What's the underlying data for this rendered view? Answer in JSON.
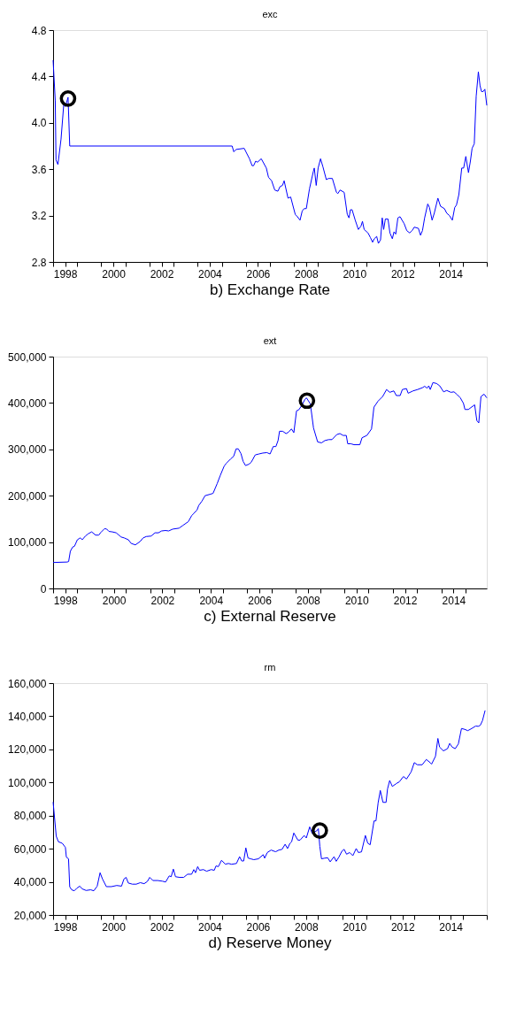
{
  "chart_data": [
    {
      "type": "line",
      "title": "exc",
      "annotations": [
        "b) Exchange Rate"
      ],
      "xlim": [
        1998,
        2016
      ],
      "xticks": [
        {
          "value": 1998,
          "label": null
        },
        {
          "value": 1998.5,
          "label": "1998"
        },
        {
          "value": 1999,
          "label": null
        },
        {
          "value": 2000,
          "label": null
        },
        {
          "value": 2000.5,
          "label": "2000"
        },
        {
          "value": 2001,
          "label": null
        },
        {
          "value": 2002,
          "label": null
        },
        {
          "value": 2002.5,
          "label": "2002"
        },
        {
          "value": 2003,
          "label": null
        },
        {
          "value": 2004,
          "label": null
        },
        {
          "value": 2004.5,
          "label": "2004"
        },
        {
          "value": 2005,
          "label": null
        },
        {
          "value": 2006,
          "label": null
        },
        {
          "value": 2006.5,
          "label": "2006"
        },
        {
          "value": 2007,
          "label": null
        },
        {
          "value": 2008,
          "label": null
        },
        {
          "value": 2008.5,
          "label": "2008"
        },
        {
          "value": 2009,
          "label": null
        },
        {
          "value": 2010,
          "label": null
        },
        {
          "value": 2010.5,
          "label": "2010"
        },
        {
          "value": 2011,
          "label": null
        },
        {
          "value": 2012,
          "label": null
        },
        {
          "value": 2012.5,
          "label": "2012"
        },
        {
          "value": 2013,
          "label": null
        },
        {
          "value": 2014,
          "label": null
        },
        {
          "value": 2014.5,
          "label": "2014"
        },
        {
          "value": 2015,
          "label": null
        },
        {
          "value": 2016,
          "label": null
        }
      ],
      "ylim": [
        2.8,
        4.8
      ],
      "yticks": [
        {
          "value": 2.8,
          "label": "2.8"
        },
        {
          "value": 3.2,
          "label": "3.2"
        },
        {
          "value": 3.6,
          "label": "3.6"
        },
        {
          "value": 4,
          "label": "4.0"
        },
        {
          "value": 4.4,
          "label": "4.4"
        },
        {
          "value": 4.8,
          "label": "4.8"
        }
      ],
      "series": [
        {
          "color": "#0000ff",
          "x": [
            1998.0,
            1998.09,
            1998.12,
            1998.2,
            1998.33,
            1998.45,
            1998.51,
            1998.62,
            1998.69,
            2005.43,
            2005.5,
            2005.59,
            2005.93,
            2006.15,
            2006.26,
            2006.32,
            2006.41,
            2006.48,
            2006.64,
            2006.85,
            2006.94,
            2007.07,
            2007.2,
            2007.33,
            2007.42,
            2007.52,
            2007.59,
            2007.75,
            2007.86,
            2008.05,
            2008.14,
            2008.25,
            2008.34,
            2008.42,
            2008.51,
            2008.64,
            2008.8,
            2008.84,
            2008.92,
            2009.0,
            2009.1,
            2009.2,
            2009.34,
            2009.43,
            2009.59,
            2009.76,
            2009.82,
            2009.91,
            2010.08,
            2010.21,
            2010.28,
            2010.34,
            2010.41,
            2010.54,
            2010.67,
            2010.78,
            2010.84,
            2010.91,
            2011.07,
            2011.17,
            2011.26,
            2011.33,
            2011.43,
            2011.5,
            2011.59,
            2011.66,
            2011.72,
            2011.79,
            2011.9,
            2011.98,
            2012.08,
            2012.15,
            2012.22,
            2012.31,
            2012.4,
            2012.57,
            2012.68,
            2012.8,
            2012.9,
            2012.99,
            2013.16,
            2013.25,
            2013.33,
            2013.42,
            2013.55,
            2013.62,
            2013.73,
            2013.82,
            2013.97,
            2014.08,
            2014.24,
            2014.34,
            2014.45,
            2014.57,
            2014.67,
            2014.74,
            2014.84,
            2014.96,
            2015.04,
            2015.13,
            2015.24,
            2015.32,
            2015.39,
            2015.48,
            2015.56,
            2015.65,
            2015.72,
            2015.78,
            2015.85,
            2015.92,
            2016.0
          ],
          "values": [
            4.54,
            4.19,
            3.68,
            3.64,
            3.86,
            4.18,
            4.14,
            4.22,
            3.8,
            3.8,
            3.75,
            3.77,
            3.78,
            3.69,
            3.63,
            3.63,
            3.67,
            3.66,
            3.69,
            3.61,
            3.53,
            3.5,
            3.42,
            3.41,
            3.45,
            3.46,
            3.5,
            3.35,
            3.36,
            3.21,
            3.19,
            3.16,
            3.24,
            3.26,
            3.26,
            3.43,
            3.58,
            3.61,
            3.46,
            3.61,
            3.69,
            3.62,
            3.51,
            3.52,
            3.52,
            3.4,
            3.39,
            3.42,
            3.4,
            3.21,
            3.18,
            3.25,
            3.25,
            3.16,
            3.08,
            3.11,
            3.15,
            3.08,
            3.05,
            3.01,
            2.97,
            3.0,
            3.02,
            2.96,
            2.99,
            3.18,
            3.08,
            3.17,
            3.17,
            3.05,
            3.0,
            3.06,
            3.04,
            3.18,
            3.19,
            3.13,
            3.07,
            3.05,
            3.07,
            3.1,
            3.09,
            3.03,
            3.07,
            3.18,
            3.3,
            3.27,
            3.16,
            3.22,
            3.35,
            3.28,
            3.26,
            3.22,
            3.2,
            3.16,
            3.27,
            3.29,
            3.38,
            3.61,
            3.61,
            3.71,
            3.57,
            3.67,
            3.78,
            3.82,
            4.23,
            4.44,
            4.32,
            4.27,
            4.27,
            4.29,
            4.15
          ]
        },
        {
          "type": "scatter",
          "color": "#000000",
          "marker": "circle",
          "x": [
            1998.62
          ],
          "values": [
            4.21
          ]
        }
      ]
    },
    {
      "type": "line",
      "title": "ext",
      "annotations": [
        "c) External Reserve"
      ],
      "xlim": [
        1998,
        2015.87
      ],
      "xticks": [
        {
          "value": 1998,
          "label": null
        },
        {
          "value": 1998.5,
          "label": "1998"
        },
        {
          "value": 1999,
          "label": null
        },
        {
          "value": 2000,
          "label": null
        },
        {
          "value": 2000.5,
          "label": "2000"
        },
        {
          "value": 2001,
          "label": null
        },
        {
          "value": 2002,
          "label": null
        },
        {
          "value": 2002.5,
          "label": "2002"
        },
        {
          "value": 2003,
          "label": null
        },
        {
          "value": 2004,
          "label": null
        },
        {
          "value": 2004.5,
          "label": "2004"
        },
        {
          "value": 2005,
          "label": null
        },
        {
          "value": 2006,
          "label": null
        },
        {
          "value": 2006.5,
          "label": "2006"
        },
        {
          "value": 2007,
          "label": null
        },
        {
          "value": 2008,
          "label": null
        },
        {
          "value": 2008.5,
          "label": "2008"
        },
        {
          "value": 2009,
          "label": null
        },
        {
          "value": 2010,
          "label": null
        },
        {
          "value": 2010.5,
          "label": "2010"
        },
        {
          "value": 2011,
          "label": null
        },
        {
          "value": 2012,
          "label": null
        },
        {
          "value": 2012.5,
          "label": "2012"
        },
        {
          "value": 2013,
          "label": null
        },
        {
          "value": 2014,
          "label": null
        },
        {
          "value": 2014.5,
          "label": "2014"
        },
        {
          "value": 2015,
          "label": null
        }
      ],
      "ylim": [
        0,
        500000
      ],
      "yticks": [
        {
          "value": 0,
          "label": "0"
        },
        {
          "value": 100000,
          "label": "100,000"
        },
        {
          "value": 200000,
          "label": "200,000"
        },
        {
          "value": 300000,
          "label": "300,000"
        },
        {
          "value": 400000,
          "label": "400,000"
        },
        {
          "value": 500000,
          "label": "500,000"
        }
      ],
      "series": [
        {
          "color": "#0000ff",
          "x": [
            1998.0,
            1998.58,
            1998.64,
            1998.71,
            1998.8,
            1998.88,
            1999.0,
            1999.12,
            1999.2,
            1999.33,
            1999.45,
            1999.59,
            1999.75,
            1999.88,
            1999.97,
            2000.12,
            2000.21,
            2000.3,
            2000.44,
            2000.6,
            2000.8,
            2000.93,
            2001.1,
            2001.22,
            2001.39,
            2001.58,
            2001.71,
            2001.84,
            2002.04,
            2002.2,
            2002.34,
            2002.47,
            2002.63,
            2002.76,
            2002.93,
            2003.19,
            2003.35,
            2003.57,
            2003.71,
            2003.8,
            2003.93,
            2004.0,
            2004.13,
            2004.26,
            2004.46,
            2004.59,
            2004.76,
            2004.89,
            2005.05,
            2005.14,
            2005.31,
            2005.44,
            2005.54,
            2005.63,
            2005.74,
            2005.83,
            2005.93,
            2006.07,
            2006.16,
            2006.33,
            2006.48,
            2006.64,
            2006.81,
            2006.94,
            2007.07,
            2007.18,
            2007.27,
            2007.33,
            2007.46,
            2007.6,
            2007.7,
            2007.82,
            2007.92,
            2008.03,
            2008.12,
            2008.25,
            2008.38,
            2008.44,
            2008.6,
            2008.73,
            2008.9,
            2009.06,
            2009.2,
            2009.36,
            2009.49,
            2009.69,
            2009.82,
            2009.95,
            2010.08,
            2010.14,
            2010.27,
            2010.4,
            2010.64,
            2010.73,
            2010.93,
            2011.12,
            2011.22,
            2011.39,
            2011.58,
            2011.74,
            2011.87,
            2012.04,
            2012.14,
            2012.3,
            2012.39,
            2012.56,
            2012.63,
            2012.83,
            2013.02,
            2013.22,
            2013.31,
            2013.41,
            2013.48,
            2013.54,
            2013.65,
            2013.8,
            2013.93,
            2014.09,
            2014.22,
            2014.39,
            2014.52,
            2014.65,
            2014.78,
            2014.91,
            2014.97,
            2015.11,
            2015.37,
            2015.46,
            2015.54,
            2015.63,
            2015.76,
            2015.87
          ],
          "values": [
            56000,
            57000,
            58000,
            80000,
            89000,
            91000,
            105000,
            109000,
            105000,
            113000,
            118000,
            122000,
            115000,
            115000,
            121000,
            129000,
            128000,
            123000,
            122000,
            120000,
            111000,
            109000,
            105000,
            97000,
            94000,
            101000,
            109000,
            112000,
            113000,
            120000,
            120000,
            124000,
            125000,
            124000,
            128000,
            130000,
            136000,
            144000,
            157000,
            162000,
            169000,
            179000,
            188000,
            200000,
            203000,
            205000,
            226000,
            244000,
            264000,
            270000,
            279000,
            285000,
            301000,
            301000,
            291000,
            274000,
            265000,
            268000,
            272000,
            288000,
            290000,
            292000,
            293000,
            290000,
            306000,
            306000,
            319000,
            339000,
            339000,
            334000,
            337000,
            344000,
            336000,
            383000,
            385000,
            395000,
            408000,
            411000,
            398000,
            346000,
            316000,
            314000,
            319000,
            321000,
            321000,
            332000,
            334000,
            330000,
            330000,
            312000,
            312000,
            310000,
            310000,
            325000,
            330000,
            344000,
            391000,
            404000,
            414000,
            429000,
            423000,
            426000,
            416000,
            416000,
            429000,
            431000,
            421000,
            426000,
            429000,
            433000,
            436000,
            432000,
            437000,
            429000,
            444000,
            442000,
            437000,
            424000,
            427000,
            423000,
            424000,
            418000,
            411000,
            399000,
            386000,
            386000,
            396000,
            362000,
            357000,
            414000,
            419000,
            411000
          ]
        },
        {
          "type": "scatter",
          "color": "#000000",
          "marker": "circle",
          "x": [
            2008.46
          ],
          "values": [
            405000
          ]
        }
      ]
    },
    {
      "type": "line",
      "title": "rm",
      "annotations": [
        "d) Reserve Money"
      ],
      "xlim": [
        1998,
        2016
      ],
      "xticks": [
        {
          "value": 1998,
          "label": null
        },
        {
          "value": 1998.5,
          "label": "1998"
        },
        {
          "value": 1999,
          "label": null
        },
        {
          "value": 2000,
          "label": null
        },
        {
          "value": 2000.5,
          "label": "2000"
        },
        {
          "value": 2001,
          "label": null
        },
        {
          "value": 2002,
          "label": null
        },
        {
          "value": 2002.5,
          "label": "2002"
        },
        {
          "value": 2003,
          "label": null
        },
        {
          "value": 2004,
          "label": null
        },
        {
          "value": 2004.5,
          "label": "2004"
        },
        {
          "value": 2005,
          "label": null
        },
        {
          "value": 2006,
          "label": null
        },
        {
          "value": 2006.5,
          "label": "2006"
        },
        {
          "value": 2007,
          "label": null
        },
        {
          "value": 2008,
          "label": null
        },
        {
          "value": 2008.5,
          "label": "2008"
        },
        {
          "value": 2009,
          "label": null
        },
        {
          "value": 2010,
          "label": null
        },
        {
          "value": 2010.5,
          "label": "2010"
        },
        {
          "value": 2011,
          "label": null
        },
        {
          "value": 2012,
          "label": null
        },
        {
          "value": 2012.5,
          "label": "2012"
        },
        {
          "value": 2013,
          "label": null
        },
        {
          "value": 2014,
          "label": null
        },
        {
          "value": 2014.5,
          "label": "2014"
        },
        {
          "value": 2015,
          "label": null
        },
        {
          "value": 2016,
          "label": null
        }
      ],
      "ylim": [
        20000,
        160000
      ],
      "yticks": [
        {
          "value": 20000,
          "label": "20,000"
        },
        {
          "value": 40000,
          "label": "40,000"
        },
        {
          "value": 60000,
          "label": "60,000"
        },
        {
          "value": 80000,
          "label": "80,000"
        },
        {
          "value": 100000,
          "label": "100,000"
        },
        {
          "value": 120000,
          "label": "120,000"
        },
        {
          "value": 140000,
          "label": "140,000"
        },
        {
          "value": 160000,
          "label": "160,000"
        }
      ],
      "series": [
        {
          "color": "#0000ff",
          "x": [
            1998.0,
            1998.13,
            1998.22,
            1998.38,
            1998.51,
            1998.55,
            1998.64,
            1998.69,
            1998.77,
            1998.88,
            1998.98,
            1999.11,
            1999.2,
            1999.37,
            1999.56,
            1999.69,
            1999.83,
            1999.95,
            2000.05,
            2000.21,
            2000.42,
            2000.64,
            2000.84,
            2000.94,
            2001.03,
            2001.12,
            2001.29,
            2001.45,
            2001.62,
            2001.78,
            2001.91,
            2002.01,
            2002.14,
            2002.34,
            2002.54,
            2002.67,
            2002.82,
            2002.9,
            2002.99,
            2003.08,
            2003.25,
            2003.42,
            2003.58,
            2003.75,
            2003.84,
            2003.91,
            2004.0,
            2004.08,
            2004.24,
            2004.37,
            2004.56,
            2004.69,
            2004.76,
            2004.86,
            2004.99,
            2005.15,
            2005.28,
            2005.41,
            2005.61,
            2005.74,
            2005.83,
            2005.91,
            2006.0,
            2006.09,
            2006.2,
            2006.33,
            2006.52,
            2006.72,
            2006.78,
            2006.89,
            2007.05,
            2007.15,
            2007.24,
            2007.37,
            2007.5,
            2007.63,
            2007.73,
            2007.83,
            2007.9,
            2007.99,
            2008.16,
            2008.25,
            2008.42,
            2008.51,
            2008.65,
            2008.75,
            2008.94,
            2009.01,
            2009.07,
            2009.14,
            2009.27,
            2009.4,
            2009.5,
            2009.66,
            2009.75,
            2009.86,
            2009.99,
            2010.08,
            2010.18,
            2010.31,
            2010.44,
            2010.58,
            2010.67,
            2010.8,
            2010.96,
            2011.06,
            2011.16,
            2011.32,
            2011.4,
            2011.49,
            2011.58,
            2011.69,
            2011.82,
            2011.88,
            2011.97,
            2012.08,
            2012.24,
            2012.37,
            2012.54,
            2012.67,
            2012.86,
            2012.99,
            2013.12,
            2013.32,
            2013.49,
            2013.65,
            2013.71,
            2013.87,
            2013.97,
            2014.04,
            2014.2,
            2014.37,
            2014.46,
            2014.56,
            2014.69,
            2014.82,
            2014.95,
            2015.08,
            2015.21,
            2015.34,
            2015.54,
            2015.64,
            2015.73,
            2015.82,
            2015.93
          ],
          "values": [
            88200,
            67600,
            64200,
            63300,
            60800,
            54900,
            53900,
            37000,
            35200,
            34600,
            36100,
            37400,
            35800,
            34800,
            35200,
            34600,
            37400,
            45500,
            41700,
            37100,
            37100,
            37800,
            37400,
            41700,
            42700,
            39300,
            38600,
            38600,
            39500,
            38900,
            40200,
            42700,
            40800,
            40800,
            40400,
            39900,
            43600,
            43100,
            47700,
            43100,
            42700,
            42700,
            44600,
            44600,
            47400,
            45500,
            49200,
            47000,
            47400,
            46400,
            47400,
            47000,
            49600,
            49200,
            53000,
            50700,
            51100,
            50600,
            51100,
            55200,
            52600,
            52600,
            60500,
            54400,
            53900,
            53400,
            53900,
            56400,
            54300,
            57700,
            59200,
            58600,
            58200,
            59200,
            59600,
            62700,
            60100,
            63300,
            64200,
            69500,
            65200,
            65200,
            68000,
            66500,
            73200,
            69300,
            70800,
            72100,
            61400,
            53900,
            54300,
            54500,
            52100,
            55200,
            52400,
            54900,
            58600,
            59600,
            56700,
            57700,
            55800,
            60100,
            57700,
            58100,
            68000,
            63300,
            62400,
            76800,
            76800,
            87700,
            95200,
            88000,
            88000,
            96100,
            101200,
            97600,
            99300,
            100400,
            103600,
            102100,
            106400,
            112000,
            110700,
            110700,
            113900,
            112000,
            111100,
            115800,
            126600,
            121400,
            119100,
            120400,
            123600,
            121400,
            120400,
            123300,
            132600,
            132100,
            131300,
            132300,
            134100,
            133900,
            134500,
            137300,
            143500
          ]
        },
        {
          "type": "scatter",
          "color": "#000000",
          "marker": "circle",
          "x": [
            2009.07
          ],
          "values": [
            71000
          ]
        }
      ]
    }
  ]
}
